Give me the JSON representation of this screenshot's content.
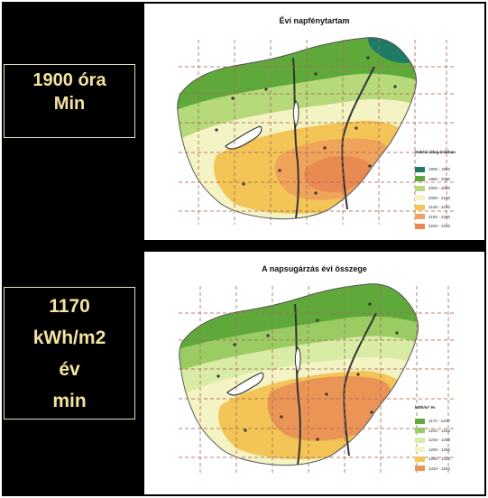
{
  "left_labels": {
    "sunshine": {
      "line1": "1900 óra",
      "line2": "Min"
    },
    "radiation": {
      "line1": "1170",
      "line2": "kWh/m2",
      "line3": "év",
      "line4": "min"
    }
  },
  "maps": {
    "sunshine": {
      "title": "Évi napfénytartam",
      "legend_title": "Sokévi átlag órákban",
      "legend": [
        {
          "label": "1900 - 1950",
          "color": "#1d7a64"
        },
        {
          "label": "1950 - 2000",
          "color": "#5fa83a"
        },
        {
          "label": "2000 - 2050",
          "color": "#b6d97a"
        },
        {
          "label": "2050 - 2100",
          "color": "#f4f3c4"
        },
        {
          "label": "2100 - 2150",
          "color": "#f2c556"
        },
        {
          "label": "2150 - 2200",
          "color": "#f0a35a"
        },
        {
          "label": "2200 - 2250",
          "color": "#e88a52"
        }
      ]
    },
    "radiation": {
      "title": "A napsugárzás évi összege",
      "legend_title": "kWh/m² év",
      "legend": [
        {
          "label": "1170 - 1220",
          "color": "#5fa83a"
        },
        {
          "label": "1220 - 1245",
          "color": "#9bcb63"
        },
        {
          "label": "1245 - 1260",
          "color": "#d9eca6"
        },
        {
          "label": "1260 - 1285",
          "color": "#f4f3c4"
        },
        {
          "label": "1285 - 1310",
          "color": "#f2c556"
        },
        {
          "label": "1310 - 1342",
          "color": "#ea9556"
        }
      ]
    }
  },
  "colors": {
    "background": "#000000",
    "label_text": "#f2e3a0"
  }
}
